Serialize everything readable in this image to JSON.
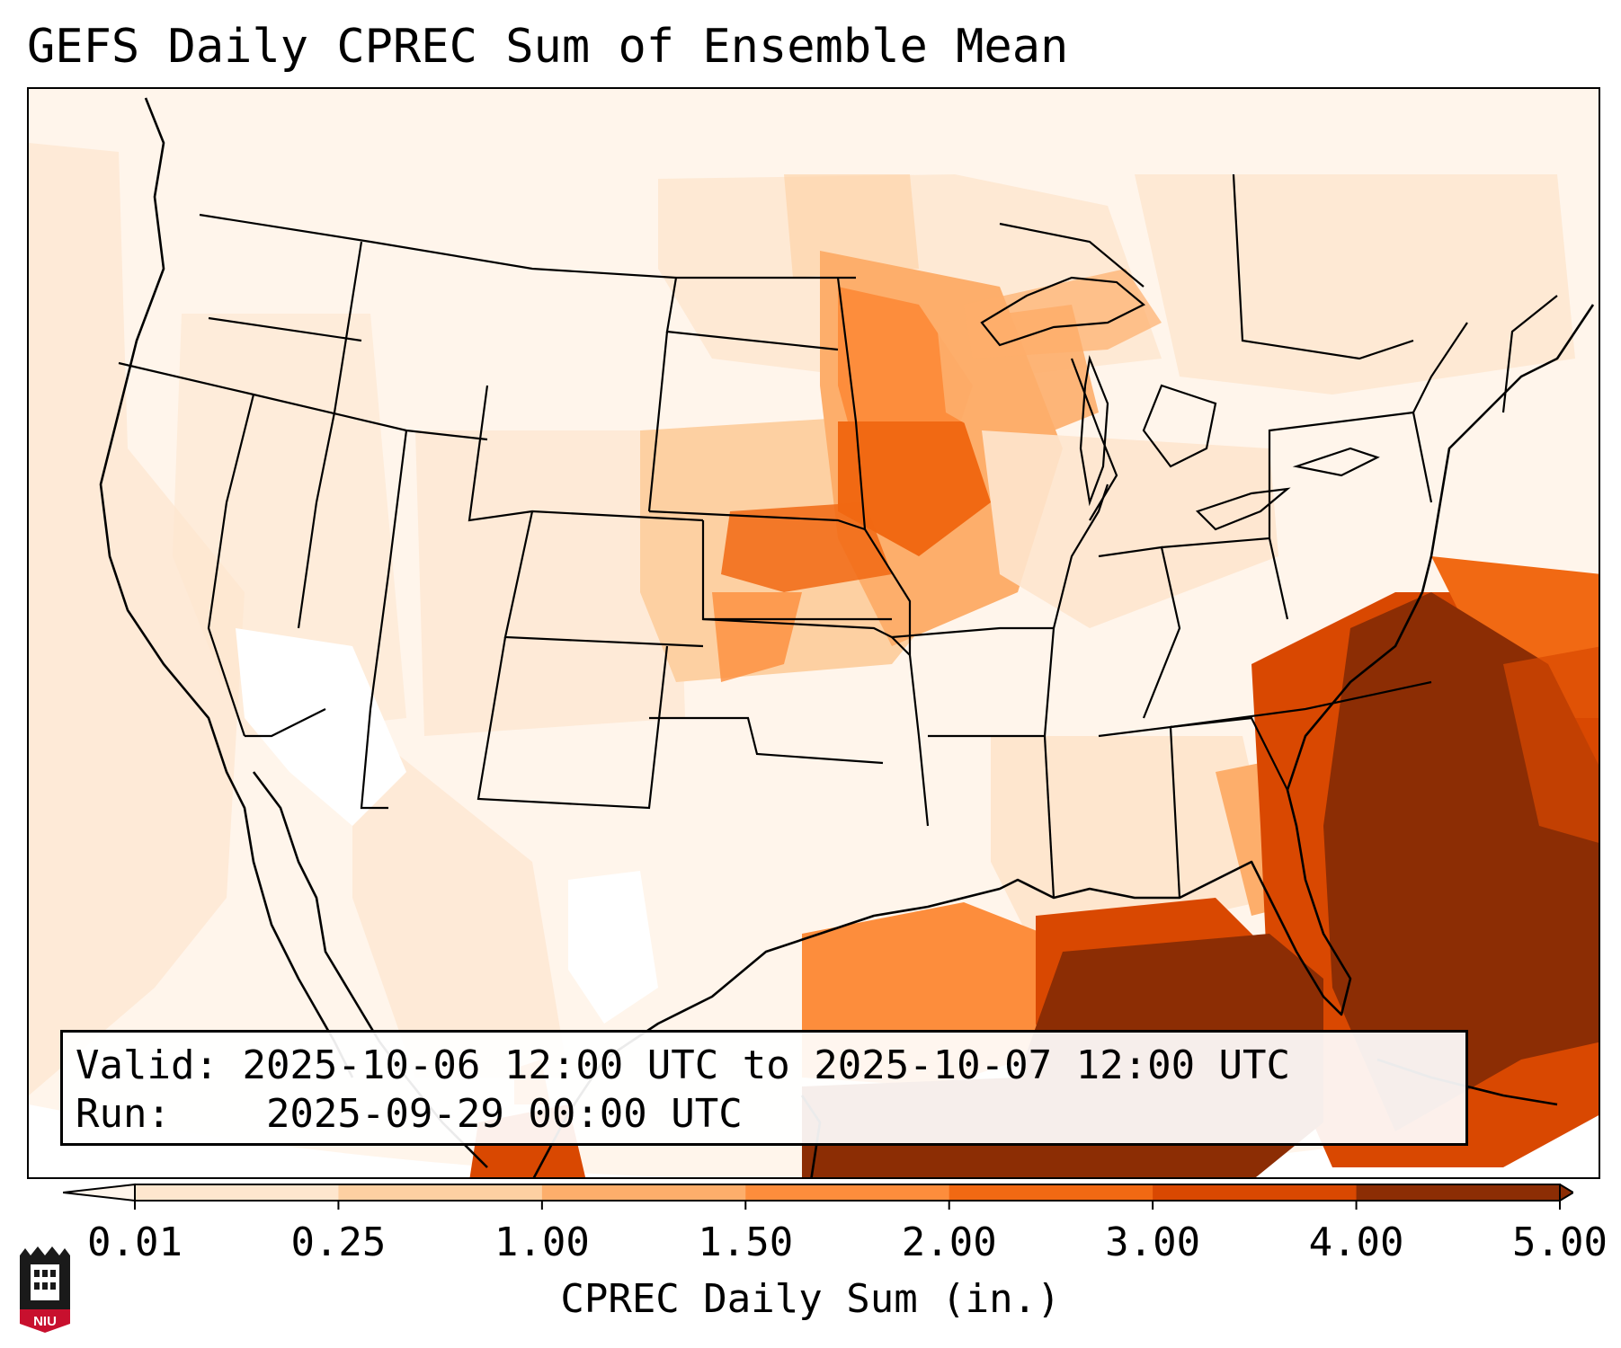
{
  "title": "GEFS Daily CPREC Sum of Ensemble Mean",
  "info": {
    "valid_label": "Valid:",
    "valid_value": "2025-10-06 12:00 UTC to 2025-10-07 12:00 UTC",
    "run_label": "Run:",
    "run_value": "2025-09-29 00:00 UTC"
  },
  "colorbar": {
    "label": "CPREC Daily Sum (in.)",
    "ticks": [
      "0.01",
      "0.25",
      "1.00",
      "1.50",
      "2.00",
      "3.00",
      "4.00",
      "5.00"
    ],
    "colors": [
      "#fff5eb",
      "#fee6ce",
      "#fdd0a2",
      "#fdae6b",
      "#fd8d3c",
      "#f16913",
      "#d94801",
      "#8c2d04"
    ]
  },
  "logo": {
    "text": "NIU",
    "icon": "niu-logo-icon"
  },
  "map_colors": {
    "ocean_far": "#fdeee0",
    "light": "#fff5eb",
    "pale": "#fee6ce",
    "tan": "#fdd0a2",
    "mid": "#fd8d3c",
    "strong": "#f16913",
    "deep": "#d94801",
    "darkest": "#8c2d04"
  }
}
